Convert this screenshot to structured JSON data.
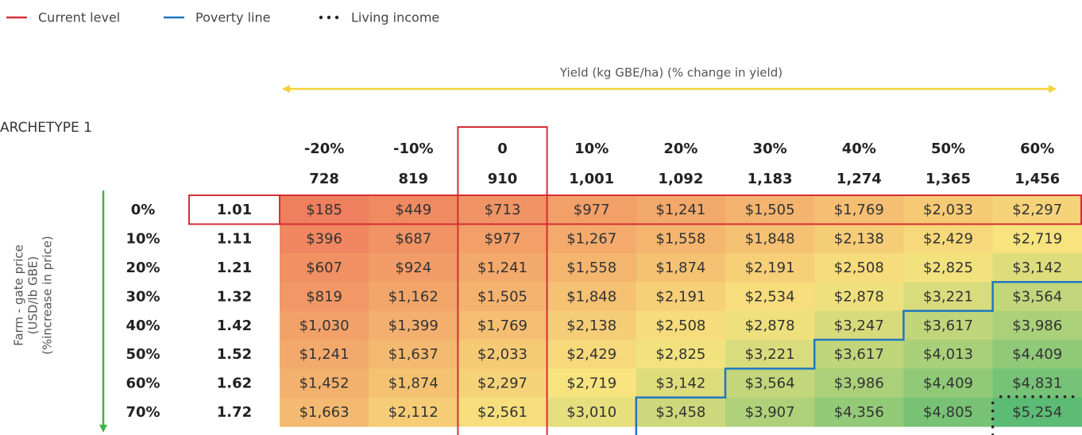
{
  "legend": {
    "items": [
      "Current level",
      "Poverty line",
      "Living income"
    ],
    "colors": [
      "#d62e36",
      "#1f77c1",
      "#222222"
    ]
  },
  "x_axis_label": "Yield (kg GBE/ha) (% change in yield)",
  "y_axis_label": [
    "Farm - gate price",
    "(USD/lb GBE)",
    "(%increase in price)"
  ],
  "section_title": "ARCHETYPE 1",
  "column_changes": [
    "-20%",
    "-10%",
    "0",
    "10%",
    "20%",
    "30%",
    "40%",
    "50%",
    "60%"
  ],
  "column_yields": [
    "728",
    "819",
    "910",
    "1,001",
    "1,092",
    "1,183",
    "1,274",
    "1,365",
    "1,456"
  ],
  "row_changes": [
    "0%",
    "10%",
    "20%",
    "30%",
    "40%",
    "50%",
    "60%",
    "70%"
  ],
  "row_prices": [
    "1.01",
    "1.11",
    "1.21",
    "1.32",
    "1.42",
    "1.52",
    "1.62",
    "1.72"
  ],
  "cells": [
    [
      "$185",
      "$449",
      "$713",
      "$977",
      "$1,241",
      "$1,505",
      "$1,769",
      "$2,033",
      "$2,297"
    ],
    [
      "$396",
      "$687",
      "$977",
      "$1,267",
      "$1,558",
      "$1,848",
      "$2,138",
      "$2,429",
      "$2,719"
    ],
    [
      "$607",
      "$924",
      "$1,241",
      "$1,558",
      "$1,874",
      "$2,191",
      "$2,508",
      "$2,825",
      "$3,142"
    ],
    [
      "$819",
      "$1,162",
      "$1,505",
      "$1,848",
      "$2,191",
      "$2,534",
      "$2,878",
      "$3,221",
      "$3,564"
    ],
    [
      "$1,030",
      "$1,399",
      "$1,769",
      "$2,138",
      "$2,508",
      "$2,878",
      "$3,247",
      "$3,617",
      "$3,986"
    ],
    [
      "$1,241",
      "$1,637",
      "$2,033",
      "$2,429",
      "$2,825",
      "$3,221",
      "$3,617",
      "$4,013",
      "$4,409"
    ],
    [
      "$1,452",
      "$1,874",
      "$2,297",
      "$2,719",
      "$3,142",
      "$3,564",
      "$3,986",
      "$4,409",
      "$4,831"
    ],
    [
      "$1,663",
      "$2,112",
      "$2,561",
      "$3,010",
      "$3,458",
      "$3,907",
      "$4,356",
      "$4,805",
      "$5,254"
    ]
  ],
  "color_scale": [
    "#ef7f5e",
    "#f8e47e",
    "#5cbb74"
  ]
}
